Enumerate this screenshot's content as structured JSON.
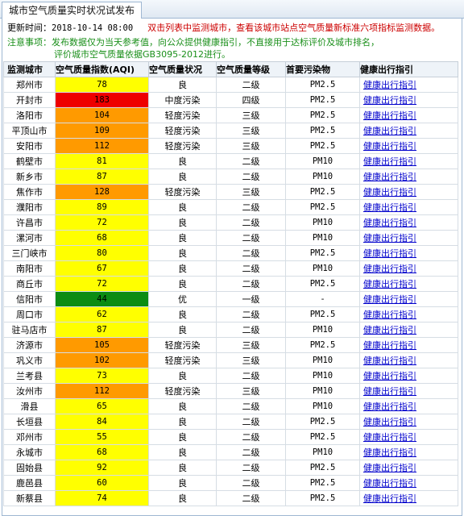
{
  "tab": {
    "label": "城市空气质量实时状况试发布"
  },
  "info": {
    "update_label": "更新时间：",
    "update_time": "2018-10-14 08:00",
    "hint": "双击列表中监测城市，查看该城市站点空气质量新标准六项指标监测数据。",
    "notice_1": "注意事项：发布数据仅为当天参考值，向公众提供健康指引，不直接用于达标评价及城市排名，",
    "notice_2": "评价城市空气质量依据GB3095-2012进行。"
  },
  "colors": {
    "excellent": "#0c8c12",
    "good": "#ffff00",
    "light": "#ff9a00",
    "moderate": "#ee0000"
  },
  "table": {
    "headers": [
      "监测城市",
      "空气质量指数(AQI)",
      "空气质量状况",
      "空气质量等级",
      "首要污染物",
      "健康出行指引"
    ],
    "rows": [
      {
        "city": "郑州市",
        "aqi": "78",
        "status": "良",
        "grade": "二级",
        "pollutant": "PM2.5",
        "link": "健康出行指引",
        "level": "good"
      },
      {
        "city": "开封市",
        "aqi": "183",
        "status": "中度污染",
        "grade": "四级",
        "pollutant": "PM2.5",
        "link": "健康出行指引",
        "level": "moderate"
      },
      {
        "city": "洛阳市",
        "aqi": "104",
        "status": "轻度污染",
        "grade": "三级",
        "pollutant": "PM2.5",
        "link": "健康出行指引",
        "level": "light"
      },
      {
        "city": "平顶山市",
        "aqi": "109",
        "status": "轻度污染",
        "grade": "三级",
        "pollutant": "PM2.5",
        "link": "健康出行指引",
        "level": "light"
      },
      {
        "city": "安阳市",
        "aqi": "112",
        "status": "轻度污染",
        "grade": "三级",
        "pollutant": "PM2.5",
        "link": "健康出行指引",
        "level": "light"
      },
      {
        "city": "鹤壁市",
        "aqi": "81",
        "status": "良",
        "grade": "二级",
        "pollutant": "PM10",
        "link": "健康出行指引",
        "level": "good"
      },
      {
        "city": "新乡市",
        "aqi": "87",
        "status": "良",
        "grade": "二级",
        "pollutant": "PM10",
        "link": "健康出行指引",
        "level": "good"
      },
      {
        "city": "焦作市",
        "aqi": "128",
        "status": "轻度污染",
        "grade": "三级",
        "pollutant": "PM2.5",
        "link": "健康出行指引",
        "level": "light"
      },
      {
        "city": "濮阳市",
        "aqi": "89",
        "status": "良",
        "grade": "二级",
        "pollutant": "PM2.5",
        "link": "健康出行指引",
        "level": "good"
      },
      {
        "city": "许昌市",
        "aqi": "72",
        "status": "良",
        "grade": "二级",
        "pollutant": "PM10",
        "link": "健康出行指引",
        "level": "good"
      },
      {
        "city": "漯河市",
        "aqi": "68",
        "status": "良",
        "grade": "二级",
        "pollutant": "PM10",
        "link": "健康出行指引",
        "level": "good"
      },
      {
        "city": "三门峡市",
        "aqi": "80",
        "status": "良",
        "grade": "二级",
        "pollutant": "PM2.5",
        "link": "健康出行指引",
        "level": "good"
      },
      {
        "city": "南阳市",
        "aqi": "67",
        "status": "良",
        "grade": "二级",
        "pollutant": "PM10",
        "link": "健康出行指引",
        "level": "good"
      },
      {
        "city": "商丘市",
        "aqi": "72",
        "status": "良",
        "grade": "二级",
        "pollutant": "PM2.5",
        "link": "健康出行指引",
        "level": "good"
      },
      {
        "city": "信阳市",
        "aqi": "44",
        "status": "优",
        "grade": "一级",
        "pollutant": "-",
        "link": "健康出行指引",
        "level": "excellent"
      },
      {
        "city": "周口市",
        "aqi": "62",
        "status": "良",
        "grade": "二级",
        "pollutant": "PM2.5",
        "link": "健康出行指引",
        "level": "good"
      },
      {
        "city": "驻马店市",
        "aqi": "87",
        "status": "良",
        "grade": "二级",
        "pollutant": "PM10",
        "link": "健康出行指引",
        "level": "good"
      },
      {
        "city": "济源市",
        "aqi": "105",
        "status": "轻度污染",
        "grade": "三级",
        "pollutant": "PM2.5",
        "link": "健康出行指引",
        "level": "light"
      },
      {
        "city": "巩义市",
        "aqi": "102",
        "status": "轻度污染",
        "grade": "三级",
        "pollutant": "PM10",
        "link": "健康出行指引",
        "level": "light"
      },
      {
        "city": "兰考县",
        "aqi": "73",
        "status": "良",
        "grade": "二级",
        "pollutant": "PM10",
        "link": "健康出行指引",
        "level": "good"
      },
      {
        "city": "汝州市",
        "aqi": "112",
        "status": "轻度污染",
        "grade": "三级",
        "pollutant": "PM10",
        "link": "健康出行指引",
        "level": "light"
      },
      {
        "city": "滑县",
        "aqi": "65",
        "status": "良",
        "grade": "二级",
        "pollutant": "PM10",
        "link": "健康出行指引",
        "level": "good"
      },
      {
        "city": "长垣县",
        "aqi": "84",
        "status": "良",
        "grade": "二级",
        "pollutant": "PM2.5",
        "link": "健康出行指引",
        "level": "good"
      },
      {
        "city": "邓州市",
        "aqi": "55",
        "status": "良",
        "grade": "二级",
        "pollutant": "PM2.5",
        "link": "健康出行指引",
        "level": "good"
      },
      {
        "city": "永城市",
        "aqi": "68",
        "status": "良",
        "grade": "二级",
        "pollutant": "PM10",
        "link": "健康出行指引",
        "level": "good"
      },
      {
        "city": "固始县",
        "aqi": "92",
        "status": "良",
        "grade": "二级",
        "pollutant": "PM2.5",
        "link": "健康出行指引",
        "level": "good"
      },
      {
        "city": "鹿邑县",
        "aqi": "60",
        "status": "良",
        "grade": "二级",
        "pollutant": "PM2.5",
        "link": "健康出行指引",
        "level": "good"
      },
      {
        "city": "新蔡县",
        "aqi": "74",
        "status": "良",
        "grade": "二级",
        "pollutant": "PM2.5",
        "link": "健康出行指引",
        "level": "good"
      }
    ]
  }
}
